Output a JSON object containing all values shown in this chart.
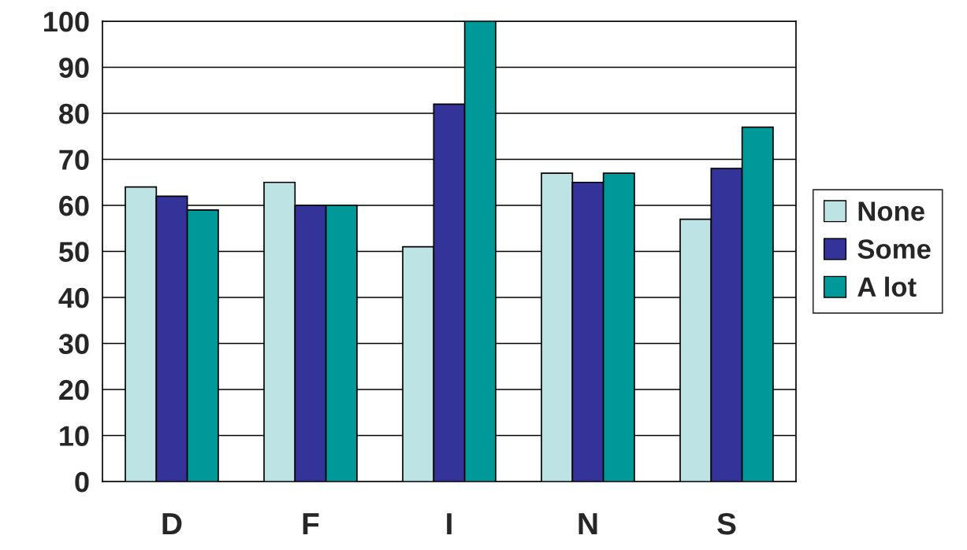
{
  "chart_data": {
    "type": "bar",
    "categories": [
      "D",
      "F",
      "I",
      "N",
      "S"
    ],
    "series": [
      {
        "name": "None",
        "color": "#bde3e5",
        "values": [
          64,
          65,
          51,
          67,
          57
        ]
      },
      {
        "name": "Some",
        "color": "#333399",
        "values": [
          62,
          60,
          82,
          65,
          68
        ]
      },
      {
        "name": "A lot",
        "color": "#009999",
        "values": [
          59,
          60,
          100,
          67,
          77
        ]
      }
    ],
    "ylim": [
      0,
      100
    ],
    "yticks": [
      0,
      10,
      20,
      30,
      40,
      50,
      60,
      70,
      80,
      90,
      100
    ],
    "grid": "y",
    "legend": "right"
  }
}
